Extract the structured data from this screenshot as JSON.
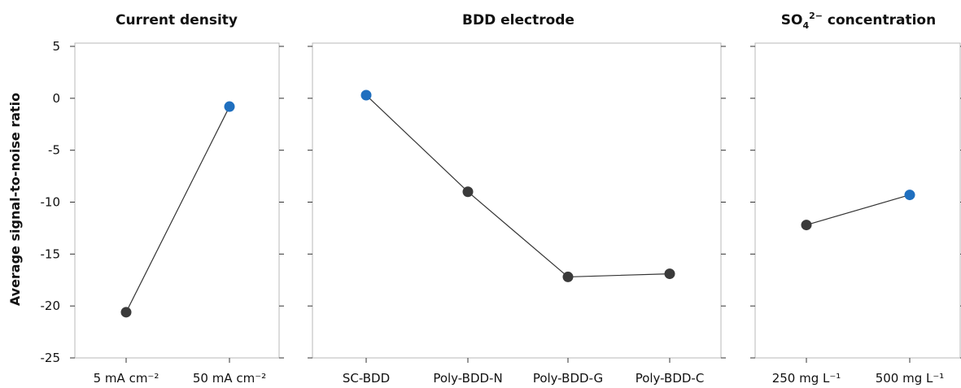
{
  "colors": {
    "point_default": "#3a3a3a",
    "point_highlight": "#1f6fbf",
    "line": "#333333",
    "frame": "#b9b9b9"
  },
  "chart_data": {
    "type": "line",
    "ylabel": "Average signal-to-noise ratio",
    "ylim": [
      -25,
      5
    ],
    "yticks": [
      5,
      0,
      -5,
      -10,
      -15,
      -20,
      -25
    ],
    "grid": false,
    "panels": [
      {
        "title": "Current density",
        "categories": [
          "5 mA cm⁻²",
          "50 mA cm⁻²"
        ],
        "values": [
          -20.6,
          -0.8
        ],
        "highlight_index": 1
      },
      {
        "title": "BDD electrode",
        "categories": [
          "SC-BDD",
          "Poly-BDD-N",
          "Poly-BDD-G",
          "Poly-BDD-C"
        ],
        "values": [
          0.3,
          -9.0,
          -17.2,
          -16.9
        ],
        "highlight_index": 0
      },
      {
        "title_main": "SO",
        "title_sub": "4",
        "title_sup": "2−",
        "title_rest": " concentration",
        "categories": [
          "250 mg L⁻¹",
          "500 mg L⁻¹"
        ],
        "values": [
          -12.2,
          -9.3
        ],
        "highlight_index": 1
      }
    ]
  }
}
